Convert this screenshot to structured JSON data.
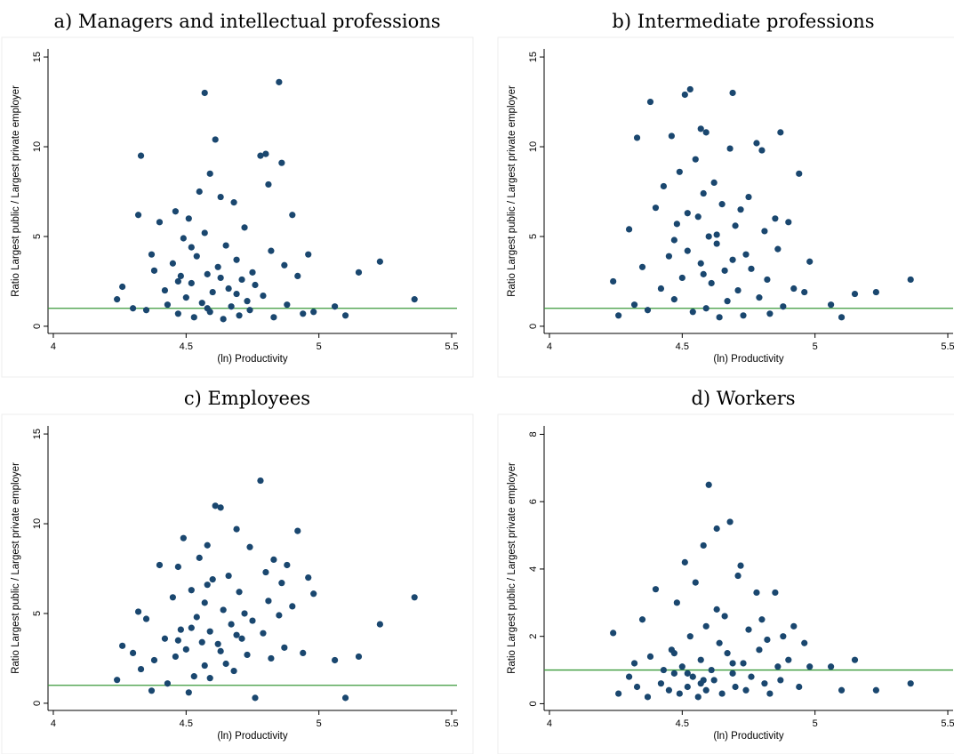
{
  "chart_data": [
    {
      "type": "scatter",
      "title": "a) Managers and intellectual professions",
      "x_label": "(ln) Productivity",
      "y_label": "Ratio Largest public / Largest private employer",
      "xlim": [
        3.98,
        5.52
      ],
      "ylim": [
        -0.4,
        15.45
      ],
      "xticks": [
        4,
        4.5,
        5,
        5.5
      ],
      "yticks": [
        0,
        5,
        10,
        15
      ],
      "color": "#1a476f",
      "refline": 1,
      "refline_color": "#3a9a3a",
      "x": [
        4.24,
        4.26,
        4.3,
        4.32,
        4.33,
        4.35,
        4.37,
        4.38,
        4.4,
        4.42,
        4.43,
        4.45,
        4.46,
        4.47,
        4.48,
        4.49,
        4.5,
        4.51,
        4.52,
        4.53,
        4.54,
        4.55,
        4.56,
        4.57,
        4.57,
        4.58,
        4.59,
        4.59,
        4.6,
        4.61,
        4.62,
        4.63,
        4.64,
        4.65,
        4.66,
        4.67,
        4.68,
        4.69,
        4.7,
        4.71,
        4.72,
        4.73,
        4.74,
        4.75,
        4.76,
        4.78,
        4.79,
        4.8,
        4.81,
        4.82,
        4.83,
        4.85,
        4.86,
        4.87,
        4.88,
        4.9,
        4.92,
        4.94,
        4.96,
        4.98,
        5.06,
        5.1,
        5.15,
        5.23,
        5.36,
        4.47,
        4.52,
        4.58,
        4.63,
        4.69
      ],
      "values": [
        1.5,
        2.2,
        1.0,
        6.2,
        9.5,
        0.9,
        4.0,
        3.1,
        5.8,
        2.0,
        1.2,
        3.5,
        6.4,
        0.7,
        2.8,
        4.9,
        1.6,
        6.0,
        2.4,
        0.5,
        3.9,
        7.5,
        1.3,
        13.0,
        5.2,
        2.9,
        8.5,
        0.8,
        1.9,
        10.4,
        3.3,
        7.2,
        0.4,
        4.5,
        2.1,
        1.1,
        6.9,
        3.7,
        0.6,
        2.6,
        5.5,
        1.4,
        0.9,
        3.0,
        2.3,
        9.5,
        1.7,
        9.6,
        7.9,
        4.2,
        0.5,
        13.6,
        9.1,
        3.4,
        1.2,
        6.2,
        2.8,
        0.7,
        4.0,
        0.8,
        1.1,
        0.6,
        3.0,
        3.6,
        1.5,
        2.5,
        4.4,
        1.0,
        2.7,
        1.8
      ]
    },
    {
      "type": "scatter",
      "title": "b) Intermediate professions",
      "x_label": "(ln) Productivity",
      "y_label": "Ratio Largest public / Largest private employer",
      "xlim": [
        3.98,
        5.52
      ],
      "ylim": [
        -0.4,
        15.45
      ],
      "xticks": [
        4,
        4.5,
        5,
        5.5
      ],
      "yticks": [
        0,
        5,
        10,
        15
      ],
      "color": "#1a476f",
      "refline": 1,
      "refline_color": "#3a9a3a",
      "x": [
        4.24,
        4.26,
        4.3,
        4.32,
        4.33,
        4.35,
        4.37,
        4.38,
        4.4,
        4.42,
        4.43,
        4.45,
        4.46,
        4.47,
        4.48,
        4.49,
        4.5,
        4.51,
        4.52,
        4.53,
        4.54,
        4.55,
        4.56,
        4.57,
        4.57,
        4.58,
        4.59,
        4.59,
        4.6,
        4.61,
        4.62,
        4.63,
        4.64,
        4.65,
        4.66,
        4.67,
        4.68,
        4.69,
        4.7,
        4.71,
        4.72,
        4.73,
        4.74,
        4.75,
        4.76,
        4.78,
        4.79,
        4.8,
        4.81,
        4.82,
        4.83,
        4.85,
        4.86,
        4.87,
        4.88,
        4.9,
        4.92,
        4.94,
        4.96,
        4.98,
        5.06,
        5.1,
        5.15,
        5.23,
        5.36,
        4.47,
        4.52,
        4.58,
        4.63,
        4.69
      ],
      "values": [
        2.5,
        0.6,
        5.4,
        1.2,
        10.5,
        3.3,
        0.9,
        12.5,
        6.6,
        2.1,
        7.8,
        3.9,
        10.6,
        1.5,
        5.7,
        8.6,
        2.7,
        12.9,
        4.2,
        13.2,
        0.8,
        9.3,
        6.1,
        11.0,
        3.5,
        7.4,
        1.0,
        10.8,
        5.0,
        2.4,
        8.0,
        4.6,
        0.5,
        6.8,
        3.1,
        1.4,
        9.9,
        13.0,
        5.6,
        2.0,
        6.5,
        0.6,
        4.0,
        7.2,
        3.2,
        10.2,
        1.6,
        9.8,
        5.3,
        2.6,
        0.7,
        6.0,
        4.3,
        10.8,
        1.1,
        5.8,
        2.1,
        8.5,
        1.9,
        3.6,
        1.2,
        0.5,
        1.8,
        1.9,
        2.6,
        4.8,
        6.3,
        2.9,
        5.1,
        3.7
      ]
    },
    {
      "type": "scatter",
      "title": "c) Employees",
      "x_label": "(ln) Productivity",
      "y_label": "Ratio Largest public / Largest private employer",
      "xlim": [
        3.98,
        5.52
      ],
      "ylim": [
        -0.4,
        15.45
      ],
      "xticks": [
        4,
        4.5,
        5,
        5.5
      ],
      "yticks": [
        0,
        5,
        10,
        15
      ],
      "color": "#1a476f",
      "refline": 1,
      "refline_color": "#3a9a3a",
      "x": [
        4.24,
        4.26,
        4.3,
        4.32,
        4.33,
        4.35,
        4.37,
        4.38,
        4.4,
        4.42,
        4.43,
        4.45,
        4.46,
        4.47,
        4.48,
        4.49,
        4.5,
        4.51,
        4.52,
        4.53,
        4.54,
        4.55,
        4.56,
        4.57,
        4.57,
        4.58,
        4.59,
        4.59,
        4.6,
        4.61,
        4.62,
        4.63,
        4.64,
        4.65,
        4.66,
        4.67,
        4.68,
        4.69,
        4.7,
        4.71,
        4.72,
        4.73,
        4.74,
        4.75,
        4.76,
        4.78,
        4.79,
        4.8,
        4.81,
        4.82,
        4.83,
        4.85,
        4.86,
        4.87,
        4.88,
        4.9,
        4.92,
        4.94,
        4.96,
        4.98,
        5.06,
        5.1,
        5.15,
        5.23,
        5.36,
        4.47,
        4.52,
        4.58,
        4.63,
        4.69
      ],
      "values": [
        1.3,
        3.2,
        2.8,
        5.1,
        1.9,
        4.7,
        0.7,
        2.4,
        7.7,
        3.6,
        1.1,
        5.9,
        2.6,
        7.6,
        4.1,
        9.2,
        3.0,
        0.6,
        6.3,
        1.5,
        4.8,
        8.1,
        3.4,
        5.6,
        2.1,
        8.8,
        4.0,
        1.4,
        6.9,
        11.0,
        3.3,
        10.9,
        5.2,
        2.2,
        7.1,
        4.4,
        1.8,
        9.7,
        6.2,
        3.6,
        5.0,
        2.7,
        8.7,
        4.6,
        0.3,
        12.4,
        3.9,
        7.3,
        5.7,
        2.5,
        8.0,
        4.9,
        6.7,
        3.1,
        7.7,
        5.4,
        9.6,
        2.8,
        7.0,
        6.1,
        2.4,
        0.3,
        2.6,
        4.4,
        5.9,
        3.5,
        4.2,
        6.6,
        2.9,
        3.8
      ]
    },
    {
      "type": "scatter",
      "title": "d) Workers",
      "x_label": "(ln) Productivity",
      "y_label": "Ratio Largest public / Largest private employer",
      "xlim": [
        3.98,
        5.52
      ],
      "ylim": [
        -0.2,
        8.25
      ],
      "xticks": [
        4,
        4.5,
        5,
        5.5
      ],
      "yticks": [
        0,
        2,
        4,
        6,
        8
      ],
      "color": "#1a476f",
      "refline": 1,
      "refline_color": "#3a9a3a",
      "x": [
        4.24,
        4.26,
        4.3,
        4.32,
        4.33,
        4.35,
        4.37,
        4.38,
        4.4,
        4.42,
        4.43,
        4.45,
        4.46,
        4.47,
        4.48,
        4.49,
        4.5,
        4.51,
        4.52,
        4.53,
        4.54,
        4.55,
        4.56,
        4.57,
        4.57,
        4.58,
        4.59,
        4.59,
        4.6,
        4.61,
        4.62,
        4.63,
        4.64,
        4.65,
        4.66,
        4.67,
        4.68,
        4.69,
        4.7,
        4.71,
        4.72,
        4.73,
        4.74,
        4.75,
        4.76,
        4.78,
        4.79,
        4.8,
        4.81,
        4.82,
        4.83,
        4.85,
        4.86,
        4.87,
        4.88,
        4.9,
        4.92,
        4.94,
        4.96,
        4.98,
        5.06,
        5.1,
        5.15,
        5.23,
        5.36,
        4.47,
        4.52,
        4.58,
        4.63,
        4.69
      ],
      "values": [
        2.1,
        0.3,
        0.8,
        1.2,
        0.5,
        2.5,
        0.2,
        1.4,
        3.4,
        0.6,
        1.0,
        0.4,
        1.6,
        0.9,
        3.0,
        0.3,
        1.1,
        4.2,
        0.5,
        2.0,
        0.8,
        3.6,
        0.2,
        1.3,
        0.6,
        4.7,
        2.3,
        0.4,
        6.5,
        1.0,
        0.7,
        5.2,
        1.8,
        0.3,
        2.6,
        1.5,
        5.4,
        0.9,
        0.5,
        3.8,
        4.1,
        1.2,
        0.4,
        2.2,
        0.8,
        3.3,
        1.6,
        2.5,
        0.6,
        1.9,
        0.3,
        3.3,
        1.1,
        0.7,
        2.0,
        1.3,
        2.3,
        0.5,
        1.8,
        1.1,
        1.1,
        0.4,
        1.3,
        0.4,
        0.6,
        1.5,
        0.9,
        0.7,
        2.8,
        1.2
      ]
    }
  ]
}
